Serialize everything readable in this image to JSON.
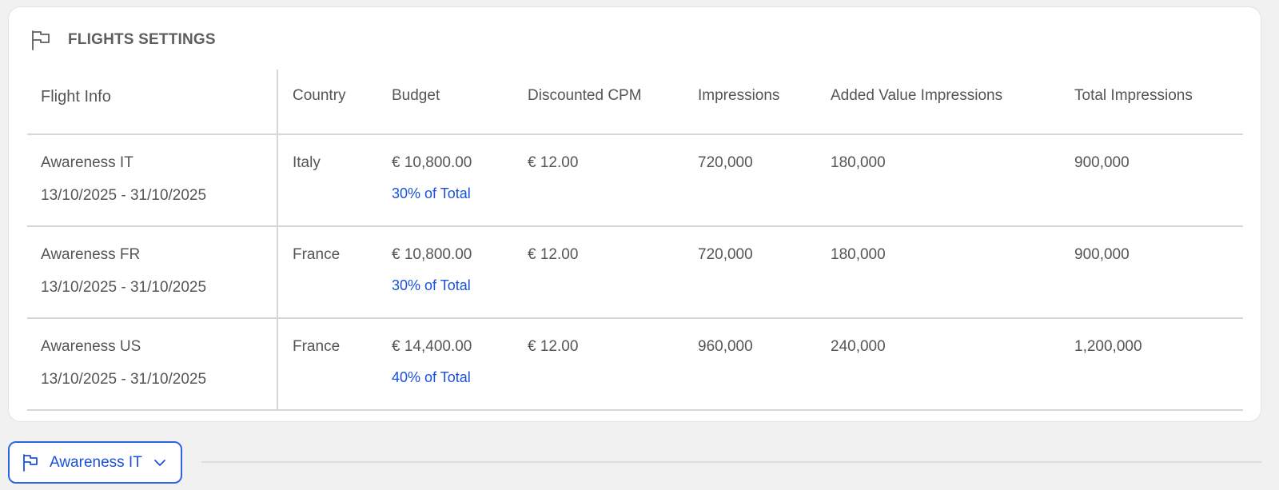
{
  "section": {
    "title": "FLIGHTS SETTINGS",
    "icon": "flag-icon"
  },
  "table": {
    "headers": {
      "info": "Flight Info",
      "country": "Country",
      "budget": "Budget",
      "cpm": "Discounted CPM",
      "impressions": "Impressions",
      "added": "Added Value Impressions",
      "total": "Total Impressions"
    },
    "rows": [
      {
        "name": "Awareness IT",
        "dates": "13/10/2025 - 31/10/2025",
        "country": "Italy",
        "budget": "€ 10,800.00",
        "share": "30% of Total",
        "cpm": "€ 12.00",
        "impressions": "720,000",
        "added": "180,000",
        "total": "900,000"
      },
      {
        "name": "Awareness FR",
        "dates": "13/10/2025 - 31/10/2025",
        "country": "France",
        "budget": "€ 10,800.00",
        "share": "30% of Total",
        "cpm": "€ 12.00",
        "impressions": "720,000",
        "added": "180,000",
        "total": "900,000"
      },
      {
        "name": "Awareness US",
        "dates": "13/10/2025 - 31/10/2025",
        "country": "France",
        "budget": "€ 14,400.00",
        "share": "40% of Total",
        "cpm": "€ 12.00",
        "impressions": "960,000",
        "added": "240,000",
        "total": "1,200,000"
      }
    ]
  },
  "flight_selector": {
    "label": "Awareness IT",
    "icon": "flag-icon",
    "chevron": "chevron-down-icon"
  },
  "colors": {
    "accent": "#1a50e0",
    "text": "#555555",
    "border": "#d6d6d6",
    "background": "#f1f1f1"
  }
}
